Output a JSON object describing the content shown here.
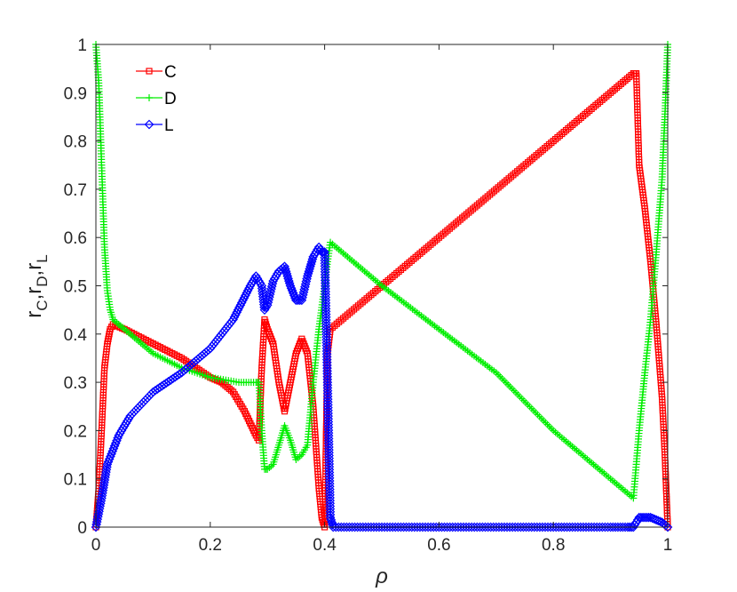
{
  "chart_data": {
    "type": "line",
    "title": "",
    "xlabel": "ρ",
    "ylabel_parts": [
      "r",
      "C",
      ",r",
      "D",
      ",r",
      "L"
    ],
    "xlim": [
      0,
      1
    ],
    "ylim": [
      0,
      1
    ],
    "xticks": [
      "0",
      "0.2",
      "0.4",
      "0.6",
      "0.8",
      "1"
    ],
    "yticks": [
      "0",
      "0.1",
      "0.2",
      "0.3",
      "0.4",
      "0.5",
      "0.6",
      "0.7",
      "0.8",
      "0.9",
      "1"
    ],
    "grid": false,
    "legend_position": "top-left",
    "series": [
      {
        "name": "C",
        "color": "#ff0000",
        "marker": "square",
        "points": [
          [
            0,
            0
          ],
          [
            0.005,
            0.08
          ],
          [
            0.01,
            0.2
          ],
          [
            0.015,
            0.33
          ],
          [
            0.02,
            0.38
          ],
          [
            0.025,
            0.41
          ],
          [
            0.03,
            0.42
          ],
          [
            0.05,
            0.41
          ],
          [
            0.1,
            0.38
          ],
          [
            0.15,
            0.35
          ],
          [
            0.2,
            0.31
          ],
          [
            0.22,
            0.3
          ],
          [
            0.24,
            0.28
          ],
          [
            0.26,
            0.24
          ],
          [
            0.28,
            0.19
          ],
          [
            0.285,
            0.18
          ],
          [
            0.29,
            0.33
          ],
          [
            0.295,
            0.43
          ],
          [
            0.3,
            0.41
          ],
          [
            0.31,
            0.38
          ],
          [
            0.32,
            0.3
          ],
          [
            0.33,
            0.24
          ],
          [
            0.34,
            0.3
          ],
          [
            0.35,
            0.36
          ],
          [
            0.36,
            0.39
          ],
          [
            0.37,
            0.36
          ],
          [
            0.38,
            0.25
          ],
          [
            0.39,
            0.08
          ],
          [
            0.395,
            0.02
          ],
          [
            0.4,
            0
          ],
          [
            0.405,
            0.36
          ],
          [
            0.41,
            0.41
          ],
          [
            0.5,
            0.5
          ],
          [
            0.6,
            0.6
          ],
          [
            0.7,
            0.7
          ],
          [
            0.8,
            0.8
          ],
          [
            0.9,
            0.9
          ],
          [
            0.94,
            0.94
          ],
          [
            0.945,
            0.94
          ],
          [
            0.95,
            0.75
          ],
          [
            0.96,
            0.66
          ],
          [
            0.97,
            0.55
          ],
          [
            0.98,
            0.42
          ],
          [
            0.99,
            0.27
          ],
          [
            0.995,
            0.15
          ],
          [
            1,
            0
          ]
        ]
      },
      {
        "name": "D",
        "color": "#00ee00",
        "marker": "plus",
        "points": [
          [
            0,
            1
          ],
          [
            0.005,
            0.92
          ],
          [
            0.01,
            0.75
          ],
          [
            0.015,
            0.58
          ],
          [
            0.02,
            0.49
          ],
          [
            0.025,
            0.45
          ],
          [
            0.03,
            0.43
          ],
          [
            0.05,
            0.41
          ],
          [
            0.1,
            0.36
          ],
          [
            0.15,
            0.33
          ],
          [
            0.2,
            0.31
          ],
          [
            0.25,
            0.3
          ],
          [
            0.28,
            0.3
          ],
          [
            0.285,
            0.3
          ],
          [
            0.29,
            0.2
          ],
          [
            0.295,
            0.12
          ],
          [
            0.3,
            0.12
          ],
          [
            0.31,
            0.13
          ],
          [
            0.32,
            0.17
          ],
          [
            0.33,
            0.21
          ],
          [
            0.34,
            0.18
          ],
          [
            0.35,
            0.14
          ],
          [
            0.36,
            0.15
          ],
          [
            0.37,
            0.17
          ],
          [
            0.38,
            0.3
          ],
          [
            0.39,
            0.41
          ],
          [
            0.4,
            0.5
          ],
          [
            0.405,
            0.55
          ],
          [
            0.41,
            0.59
          ],
          [
            0.5,
            0.5
          ],
          [
            0.6,
            0.41
          ],
          [
            0.7,
            0.32
          ],
          [
            0.8,
            0.2
          ],
          [
            0.9,
            0.1
          ],
          [
            0.94,
            0.06
          ],
          [
            0.95,
            0.2
          ],
          [
            0.96,
            0.32
          ],
          [
            0.97,
            0.43
          ],
          [
            0.98,
            0.57
          ],
          [
            0.99,
            0.72
          ],
          [
            0.995,
            0.85
          ],
          [
            1,
            1
          ]
        ]
      },
      {
        "name": "L",
        "color": "#0000ff",
        "marker": "diamond",
        "points": [
          [
            0,
            0
          ],
          [
            0.01,
            0.06
          ],
          [
            0.02,
            0.13
          ],
          [
            0.04,
            0.19
          ],
          [
            0.06,
            0.23
          ],
          [
            0.1,
            0.28
          ],
          [
            0.15,
            0.32
          ],
          [
            0.2,
            0.37
          ],
          [
            0.24,
            0.43
          ],
          [
            0.27,
            0.5
          ],
          [
            0.28,
            0.52
          ],
          [
            0.29,
            0.5
          ],
          [
            0.295,
            0.45
          ],
          [
            0.3,
            0.46
          ],
          [
            0.31,
            0.51
          ],
          [
            0.32,
            0.53
          ],
          [
            0.33,
            0.54
          ],
          [
            0.34,
            0.5
          ],
          [
            0.35,
            0.47
          ],
          [
            0.36,
            0.47
          ],
          [
            0.37,
            0.52
          ],
          [
            0.38,
            0.56
          ],
          [
            0.39,
            0.58
          ],
          [
            0.395,
            0.57
          ],
          [
            0.4,
            0.57
          ],
          [
            0.405,
            0.3
          ],
          [
            0.41,
            0.02
          ],
          [
            0.415,
            0
          ],
          [
            0.5,
            0
          ],
          [
            0.6,
            0
          ],
          [
            0.7,
            0
          ],
          [
            0.8,
            0
          ],
          [
            0.9,
            0
          ],
          [
            0.93,
            0
          ],
          [
            0.94,
            0
          ],
          [
            0.95,
            0.02
          ],
          [
            0.96,
            0.02
          ],
          [
            0.97,
            0.02
          ],
          [
            0.98,
            0.015
          ],
          [
            0.99,
            0.01
          ],
          [
            1,
            0
          ]
        ]
      }
    ]
  }
}
